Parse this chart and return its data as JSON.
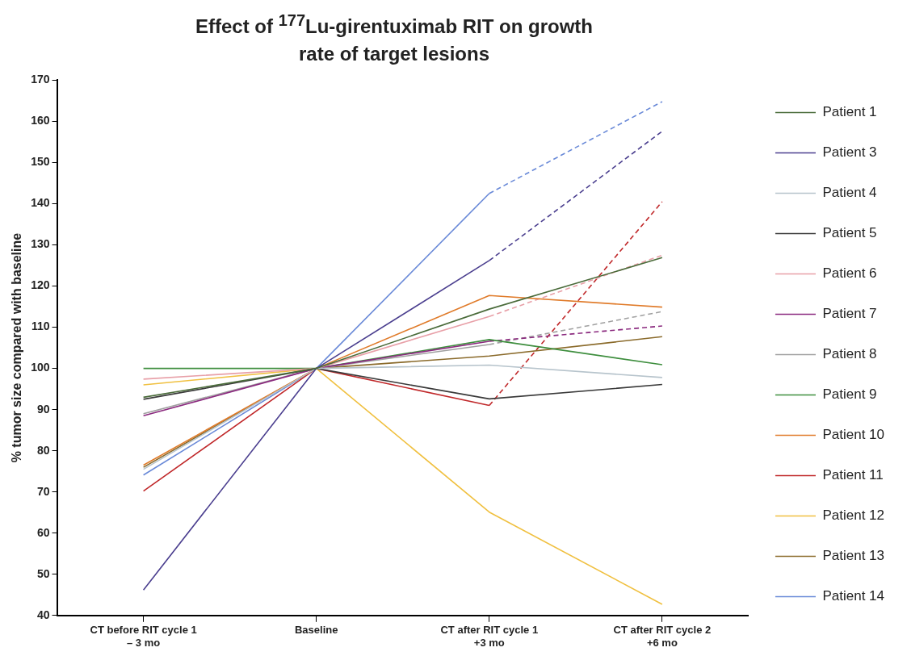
{
  "chart_data": {
    "type": "line",
    "title": "Effect of $^{177}$Lu-girentuximab RIT on growth rate of target lesions",
    "ylabel": "% tumor size compared with baseline",
    "categories": [
      "CT before RIT cycle 1\n– 3 mo",
      "Baseline",
      "CT after RIT cycle 1\n+3 mo",
      "CT after RIT cycle 2\n+6 mo"
    ],
    "ylim": [
      40,
      170
    ],
    "yticks": [
      40,
      50,
      60,
      70,
      80,
      90,
      100,
      110,
      120,
      130,
      140,
      150,
      160,
      170
    ],
    "legend": "right",
    "marker": "none",
    "series": [
      {
        "name": "Patient 1",
        "color": "#4a6b3a",
        "values": [
          93,
          100,
          114.4,
          126.9
        ]
      },
      {
        "name": "Patient 3",
        "color": "#4b3f8f",
        "values": [
          46.2,
          100,
          126.2,
          null
        ]
      },
      {
        "name": "Patient 4",
        "color": "#b7c4cc",
        "values": [
          75.5,
          100,
          100.8,
          97.8
        ]
      },
      {
        "name": "Patient 5",
        "color": "#3a3a3a",
        "values": [
          92.5,
          100,
          92.6,
          96.1
        ]
      },
      {
        "name": "Patient 6",
        "color": "#e8a0a8",
        "values": [
          97.4,
          100,
          112.6,
          null
        ]
      },
      {
        "name": "Patient 7",
        "color": "#8b2a7f",
        "values": [
          88.5,
          100,
          106.6,
          null
        ]
      },
      {
        "name": "Patient 8",
        "color": "#a0a0a0",
        "values": [
          89,
          100,
          105.8,
          null
        ]
      },
      {
        "name": "Patient 9",
        "color": "#3e8e3e",
        "values": [
          100,
          100,
          107,
          100.9
        ]
      },
      {
        "name": "Patient 10",
        "color": "#e07b2a",
        "values": [
          76.5,
          100,
          117.7,
          114.9
        ]
      },
      {
        "name": "Patient 11",
        "color": "#c0282a",
        "values": [
          70.2,
          100,
          91,
          null
        ]
      },
      {
        "name": "Patient 12",
        "color": "#f0c040",
        "values": [
          96,
          100,
          65.1,
          42.7
        ]
      },
      {
        "name": "Patient 13",
        "color": "#8a6a2a",
        "values": [
          76,
          100,
          103,
          107.7
        ]
      },
      {
        "name": "Patient 14",
        "color": "#6a8ad8",
        "values": [
          74.1,
          100,
          142.5,
          null
        ]
      },
      {
        "color": "#4b3f8f",
        "line_style": "dashed",
        "values": [
          null,
          null,
          126.2,
          157.6
        ]
      },
      {
        "color": "#e8a0a8",
        "line_style": "dashed",
        "values": [
          null,
          null,
          112.6,
          127.5
        ]
      },
      {
        "color": "#8b2a7f",
        "line_style": "dashed",
        "values": [
          null,
          null,
          106.6,
          110.3
        ]
      },
      {
        "color": "#a0a0a0",
        "line_style": "dashed",
        "values": [
          null,
          null,
          105.8,
          113.8
        ]
      },
      {
        "color": "#c0282a",
        "line_style": "dashed",
        "values": [
          null,
          null,
          91,
          140.5
        ]
      },
      {
        "color": "#6a8ad8",
        "line_style": "dashed",
        "values": [
          null,
          null,
          142.5,
          164.8
        ]
      }
    ]
  }
}
